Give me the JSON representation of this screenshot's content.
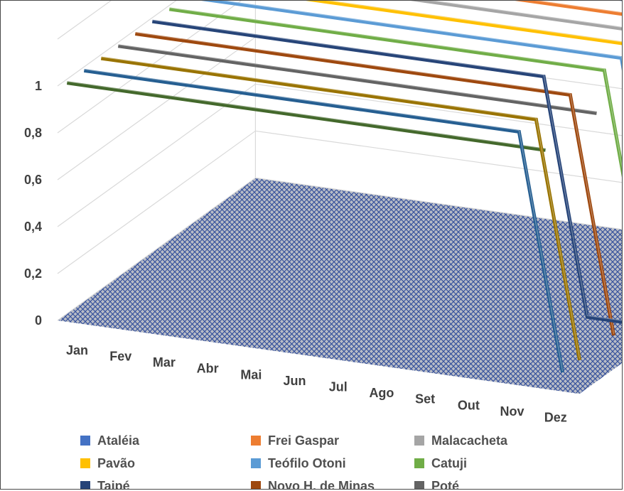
{
  "chart_data": {
    "type": "line",
    "subtype": "3d-line",
    "title": "",
    "xlabel": "",
    "ylabel": "",
    "categories": [
      "Jan",
      "Fev",
      "Mar",
      "Abr",
      "Mai",
      "Jun",
      "Jul",
      "Ago",
      "Set",
      "Out",
      "Nov",
      "Dez"
    ],
    "ylim": [
      0,
      1.2
    ],
    "yticks": [
      "0",
      "0,2",
      "0,4",
      "0,6",
      "0,8",
      "1"
    ],
    "ytick_values": [
      0,
      0.2,
      0.4,
      0.6,
      0.8,
      1
    ],
    "gridlines": true,
    "legend_position": "bottom",
    "series": [
      {
        "name": "Ataléia",
        "color": "#4472C4",
        "values": [
          1,
          1,
          1,
          1,
          1,
          1,
          1,
          1,
          1,
          1,
          1,
          0
        ]
      },
      {
        "name": "Frei Gaspar",
        "color": "#ED7D31",
        "values": [
          1,
          1,
          1,
          1,
          1,
          1,
          1,
          1,
          1,
          1,
          1,
          1
        ]
      },
      {
        "name": "Malacacheta",
        "color": "#A5A5A5",
        "values": [
          1,
          1,
          1,
          1,
          1,
          1,
          1,
          1,
          1,
          1,
          1,
          0
        ]
      },
      {
        "name": "Pavão",
        "color": "#FFC000",
        "values": [
          1,
          1,
          1,
          1,
          1,
          1,
          1,
          1,
          1,
          1,
          1,
          1
        ]
      },
      {
        "name": "Teófilo Otoni",
        "color": "#5B9BD5",
        "values": [
          1,
          1,
          1,
          1,
          1,
          1,
          1,
          1,
          1,
          1,
          1,
          0
        ]
      },
      {
        "name": "Catuji",
        "color": "#70AD47",
        "values": [
          1,
          1,
          1,
          1,
          1,
          1,
          1,
          1,
          1,
          1,
          1,
          0
        ]
      },
      {
        "name": "Taipé",
        "color": "#264478",
        "values": [
          1,
          1,
          1,
          1,
          1,
          1,
          1,
          1,
          1,
          1,
          0,
          0
        ]
      },
      {
        "name": "Novo H. de Minas",
        "color": "#9E480E",
        "values": [
          1,
          1,
          1,
          1,
          1,
          1,
          1,
          1,
          1,
          1,
          1,
          0
        ]
      },
      {
        "name": "Poté",
        "color": "#636363",
        "values": [
          1,
          1,
          1,
          1,
          1,
          1,
          1,
          1,
          1,
          1,
          1,
          1
        ]
      },
      {
        "name": "",
        "color": "#997300",
        "values": [
          1,
          1,
          1,
          1,
          1,
          1,
          1,
          1,
          1,
          1,
          1,
          0
        ]
      },
      {
        "name": "",
        "color": "#255E91",
        "values": [
          1,
          1,
          1,
          1,
          1,
          1,
          1,
          1,
          1,
          1,
          1,
          0
        ]
      },
      {
        "name": "",
        "color": "#43682B",
        "values": [
          1,
          1,
          1,
          1,
          1,
          1,
          1,
          1,
          1,
          1,
          1,
          1
        ]
      }
    ],
    "floor_color": "#B8BCC6",
    "floor_pattern_color": "#2E4B9A"
  }
}
